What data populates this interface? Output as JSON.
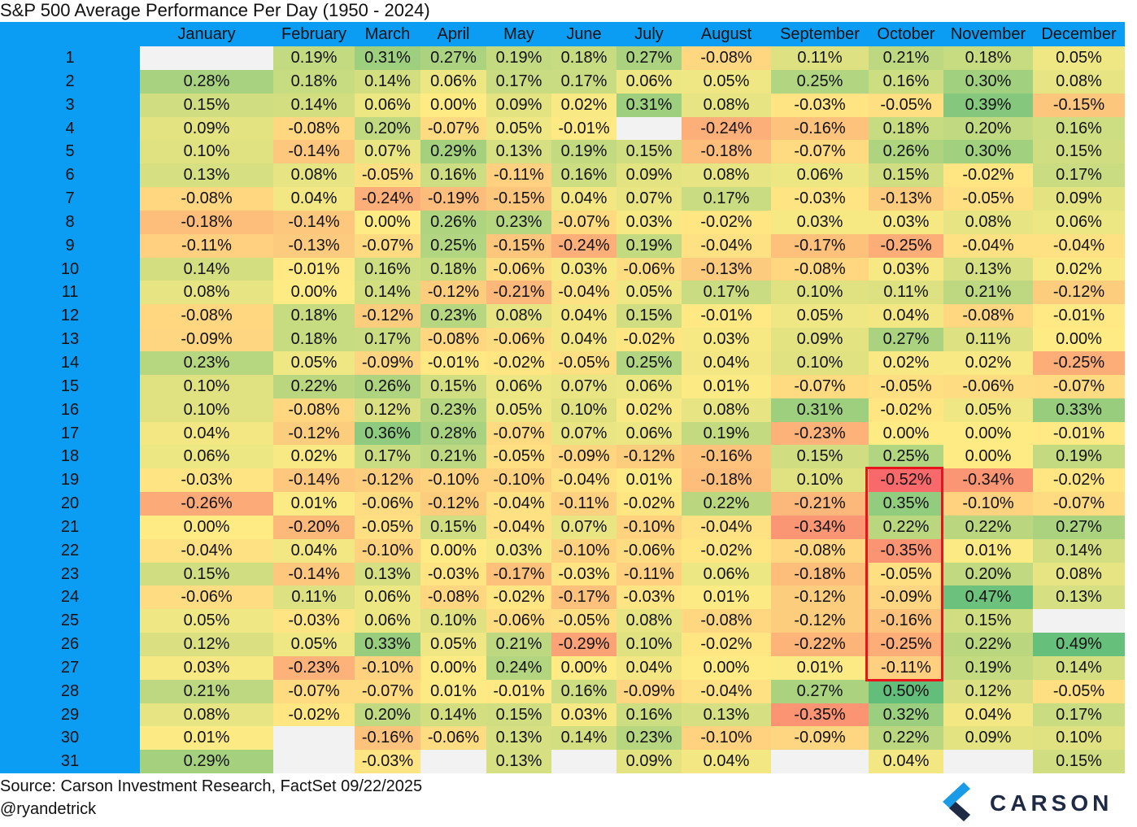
{
  "chart_data": {
    "type": "heatmap",
    "title": "S&P 500 Average Performance Per Day (1950 - 2024)",
    "columns": [
      "January",
      "February",
      "March",
      "April",
      "May",
      "June",
      "July",
      "August",
      "September",
      "October",
      "November",
      "December"
    ],
    "rows": [
      1,
      2,
      3,
      4,
      5,
      6,
      7,
      8,
      9,
      10,
      11,
      12,
      13,
      14,
      15,
      16,
      17,
      18,
      19,
      20,
      21,
      22,
      23,
      24,
      25,
      26,
      27,
      28,
      29,
      30,
      31
    ],
    "unit": "%",
    "values": [
      [
        null,
        0.19,
        0.31,
        0.27,
        0.19,
        0.18,
        0.27,
        -0.08,
        0.11,
        0.21,
        0.18,
        0.05
      ],
      [
        0.28,
        0.18,
        0.14,
        0.06,
        0.17,
        0.17,
        0.06,
        0.05,
        0.25,
        0.16,
        0.3,
        0.08
      ],
      [
        0.15,
        0.14,
        0.06,
        0.0,
        0.09,
        0.02,
        0.31,
        0.08,
        -0.03,
        -0.05,
        0.39,
        -0.15
      ],
      [
        0.09,
        -0.08,
        0.2,
        -0.07,
        0.05,
        -0.01,
        null,
        -0.24,
        -0.16,
        0.18,
        0.2,
        0.16
      ],
      [
        0.1,
        -0.14,
        0.07,
        0.29,
        0.13,
        0.19,
        0.15,
        -0.18,
        -0.07,
        0.26,
        0.3,
        0.15
      ],
      [
        0.13,
        0.08,
        -0.05,
        0.16,
        -0.11,
        0.16,
        0.09,
        0.08,
        0.06,
        0.15,
        -0.02,
        0.17
      ],
      [
        -0.08,
        0.04,
        -0.24,
        -0.19,
        -0.15,
        0.04,
        0.07,
        0.17,
        -0.03,
        -0.13,
        -0.05,
        0.09
      ],
      [
        -0.18,
        -0.14,
        0.0,
        0.26,
        0.23,
        -0.07,
        0.03,
        -0.02,
        0.03,
        0.03,
        0.08,
        0.06
      ],
      [
        -0.11,
        -0.13,
        -0.07,
        0.25,
        -0.15,
        -0.24,
        0.19,
        -0.04,
        -0.17,
        -0.25,
        -0.04,
        -0.04
      ],
      [
        0.14,
        -0.01,
        0.16,
        0.18,
        -0.06,
        0.03,
        -0.06,
        -0.13,
        -0.08,
        0.03,
        0.13,
        0.02
      ],
      [
        0.08,
        0.0,
        0.14,
        -0.12,
        -0.21,
        -0.04,
        0.05,
        0.17,
        0.1,
        0.11,
        0.21,
        -0.12
      ],
      [
        -0.08,
        0.18,
        -0.12,
        0.23,
        0.08,
        0.04,
        0.15,
        -0.01,
        0.05,
        0.04,
        -0.08,
        -0.01
      ],
      [
        -0.09,
        0.18,
        0.17,
        -0.08,
        -0.06,
        0.04,
        -0.02,
        0.03,
        0.09,
        0.27,
        0.11,
        0.0
      ],
      [
        0.23,
        0.05,
        -0.09,
        -0.01,
        -0.02,
        -0.05,
        0.25,
        0.04,
        0.1,
        0.02,
        0.02,
        -0.25
      ],
      [
        0.1,
        0.22,
        0.26,
        0.15,
        0.06,
        0.07,
        0.06,
        0.01,
        -0.07,
        -0.05,
        -0.06,
        -0.07
      ],
      [
        0.1,
        -0.08,
        0.12,
        0.23,
        0.05,
        0.1,
        0.02,
        0.08,
        0.31,
        -0.02,
        0.05,
        0.33
      ],
      [
        0.04,
        -0.12,
        0.36,
        0.28,
        -0.07,
        0.07,
        0.06,
        0.19,
        -0.23,
        0.0,
        0.0,
        -0.01
      ],
      [
        0.06,
        0.02,
        0.17,
        0.21,
        -0.05,
        -0.09,
        -0.12,
        -0.16,
        0.15,
        0.25,
        0.0,
        0.19
      ],
      [
        -0.03,
        -0.14,
        -0.12,
        -0.1,
        -0.1,
        -0.04,
        0.01,
        -0.18,
        0.1,
        -0.52,
        -0.34,
        -0.02
      ],
      [
        -0.26,
        0.01,
        -0.06,
        -0.12,
        -0.04,
        -0.11,
        -0.02,
        0.22,
        -0.21,
        0.35,
        -0.1,
        -0.07
      ],
      [
        0.0,
        -0.2,
        -0.05,
        0.15,
        -0.04,
        0.07,
        -0.1,
        -0.04,
        -0.34,
        0.22,
        0.22,
        0.27
      ],
      [
        -0.04,
        0.04,
        -0.1,
        0.0,
        0.03,
        -0.1,
        -0.06,
        -0.02,
        -0.08,
        -0.35,
        0.01,
        0.14
      ],
      [
        0.15,
        -0.14,
        0.13,
        -0.03,
        -0.17,
        -0.03,
        -0.11,
        0.06,
        -0.18,
        -0.05,
        0.2,
        0.08
      ],
      [
        -0.06,
        0.11,
        0.06,
        -0.08,
        -0.02,
        -0.17,
        -0.03,
        0.01,
        -0.12,
        -0.09,
        0.47,
        0.13
      ],
      [
        0.05,
        -0.03,
        0.06,
        0.1,
        -0.06,
        -0.05,
        0.08,
        -0.08,
        -0.12,
        -0.16,
        0.15,
        null
      ],
      [
        0.12,
        0.05,
        0.33,
        0.05,
        0.21,
        -0.29,
        0.1,
        -0.02,
        -0.22,
        -0.25,
        0.22,
        0.49
      ],
      [
        0.03,
        -0.23,
        -0.1,
        0.0,
        0.24,
        0.0,
        0.04,
        0.0,
        0.01,
        -0.11,
        0.19,
        0.14
      ],
      [
        0.21,
        -0.07,
        -0.07,
        0.01,
        -0.01,
        0.16,
        -0.09,
        -0.04,
        0.27,
        0.5,
        0.12,
        -0.05
      ],
      [
        0.08,
        -0.02,
        0.2,
        0.14,
        0.15,
        0.03,
        0.16,
        0.13,
        -0.35,
        0.32,
        0.04,
        0.17
      ],
      [
        0.01,
        null,
        -0.16,
        -0.06,
        0.13,
        0.14,
        0.23,
        -0.1,
        -0.09,
        0.22,
        0.09,
        0.1
      ],
      [
        0.29,
        null,
        -0.03,
        null,
        0.13,
        null,
        0.09,
        0.04,
        null,
        0.04,
        null,
        0.15
      ]
    ],
    "highlight": {
      "column": "October",
      "rows_from": 19,
      "rows_to": 27,
      "color": "#e8141c"
    },
    "colors": {
      "low": "#f8696b",
      "mid": "#ffeb84",
      "high": "#63be7b",
      "empty": "#f2f2f2",
      "header": "#0b9cf3"
    }
  },
  "footer": {
    "source": "Source: Carson Investment Research, FactSet 09/22/2025",
    "handle": "@ryandetrick"
  },
  "logo": {
    "text": "CARSON",
    "icon": "carson-chevron-icon"
  }
}
